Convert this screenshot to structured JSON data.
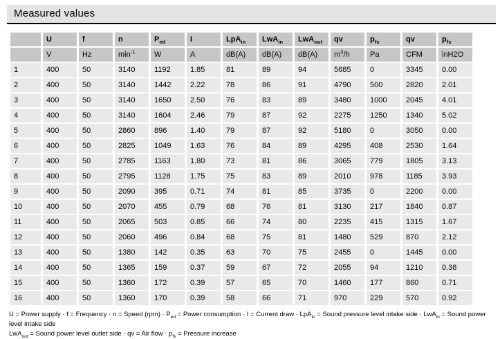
{
  "title": "Measured values",
  "table": {
    "columns": [
      {
        "label": "",
        "unit": ""
      },
      {
        "label": "U",
        "unit": "V"
      },
      {
        "label": "f",
        "unit": "Hz"
      },
      {
        "label": "n",
        "unit": "min^-1^"
      },
      {
        "label": "P~ed~",
        "unit": "W"
      },
      {
        "label": "I",
        "unit": "A"
      },
      {
        "label": "LpA~in~",
        "unit": "dB(A)"
      },
      {
        "label": "LwA~in~",
        "unit": "dB(A)"
      },
      {
        "label": "LwA~out~",
        "unit": "dB(A)"
      },
      {
        "label": "qv",
        "unit": "m^3^/h"
      },
      {
        "label": "p~fs~",
        "unit": "Pa"
      },
      {
        "label": "qv",
        "unit": "CFM"
      },
      {
        "label": "p~fs~",
        "unit": "inH2O"
      }
    ],
    "rows": [
      {
        "no": "1",
        "values": [
          "400",
          "50",
          "3140",
          "1192",
          "1.85",
          "81",
          "89",
          "94",
          "5685",
          "0",
          "3345",
          "0.00"
        ]
      },
      {
        "no": "2",
        "values": [
          "400",
          "50",
          "3140",
          "1442",
          "2.22",
          "78",
          "86",
          "91",
          "4790",
          "500",
          "2820",
          "2.01"
        ]
      },
      {
        "no": "3",
        "values": [
          "400",
          "50",
          "3140",
          "1650",
          "2.50",
          "76",
          "83",
          "89",
          "3480",
          "1000",
          "2045",
          "4.01"
        ]
      },
      {
        "no": "4",
        "values": [
          "400",
          "50",
          "3140",
          "1604",
          "2.46",
          "79",
          "87",
          "92",
          "2275",
          "1250",
          "1340",
          "5.02"
        ]
      },
      {
        "no": "5",
        "values": [
          "400",
          "50",
          "2860",
          "896",
          "1.40",
          "79",
          "87",
          "92",
          "5180",
          "0",
          "3050",
          "0.00"
        ]
      },
      {
        "no": "6",
        "values": [
          "400",
          "50",
          "2825",
          "1049",
          "1.63",
          "76",
          "84",
          "89",
          "4295",
          "408",
          "2530",
          "1.64"
        ]
      },
      {
        "no": "7",
        "values": [
          "400",
          "50",
          "2785",
          "1163",
          "1.80",
          "73",
          "81",
          "86",
          "3065",
          "779",
          "1805",
          "3.13"
        ]
      },
      {
        "no": "8",
        "values": [
          "400",
          "50",
          "2795",
          "1128",
          "1.75",
          "75",
          "83",
          "89",
          "2010",
          "978",
          "1185",
          "3.93"
        ]
      },
      {
        "no": "9",
        "values": [
          "400",
          "50",
          "2090",
          "395",
          "0.71",
          "74",
          "81",
          "85",
          "3735",
          "0",
          "2200",
          "0.00"
        ]
      },
      {
        "no": "10",
        "values": [
          "400",
          "50",
          "2070",
          "455",
          "0.79",
          "68",
          "76",
          "81",
          "3130",
          "217",
          "1840",
          "0.87"
        ]
      },
      {
        "no": "11",
        "values": [
          "400",
          "50",
          "2065",
          "503",
          "0.85",
          "66",
          "74",
          "80",
          "2235",
          "415",
          "1315",
          "1.67"
        ]
      },
      {
        "no": "12",
        "values": [
          "400",
          "50",
          "2060",
          "496",
          "0.84",
          "68",
          "75",
          "81",
          "1480",
          "529",
          "870",
          "2.12"
        ]
      },
      {
        "no": "13",
        "values": [
          "400",
          "50",
          "1380",
          "142",
          "0.35",
          "63",
          "70",
          "75",
          "2455",
          "0",
          "1445",
          "0.00"
        ]
      },
      {
        "no": "14",
        "values": [
          "400",
          "50",
          "1365",
          "159",
          "0.37",
          "59",
          "67",
          "72",
          "2055",
          "94",
          "1210",
          "0.38"
        ]
      },
      {
        "no": "15",
        "values": [
          "400",
          "50",
          "1360",
          "172",
          "0.39",
          "57",
          "65",
          "70",
          "1460",
          "177",
          "860",
          "0.71"
        ]
      },
      {
        "no": "16",
        "values": [
          "400",
          "50",
          "1360",
          "170",
          "0.39",
          "58",
          "66",
          "71",
          "970",
          "229",
          "570",
          "0.92"
        ]
      }
    ]
  },
  "legend": {
    "line1": "U = Power supply · f = Frequency · n = Speed (rpm) · P~ed~ = Power consumption · I = Current draw · LpA~in~ = Sound pressure level intake side · LwA~in~ = Sound power level intake side",
    "line2": "LwA~out~ = Sound power level outlet side · qv = Air flow · p~fs~ = Pressure increase"
  },
  "colors": {
    "title_bar_bg": "#e3e3e3",
    "header_cell_bg": "#c6c6c6",
    "data_cell_bg": "#e9e9e9",
    "title_underline": "#000000",
    "text": "#000000"
  }
}
